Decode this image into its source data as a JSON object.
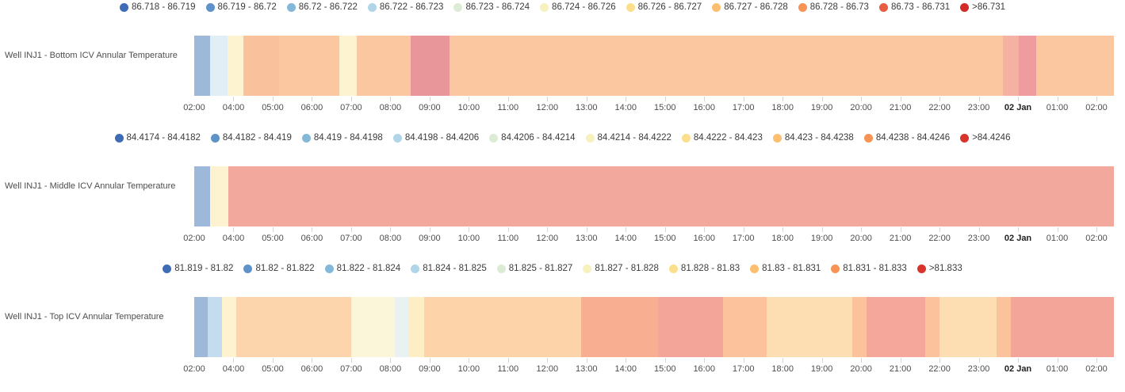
{
  "x_axis": {
    "labels": [
      "02:00",
      "04:00",
      "05:00",
      "06:00",
      "07:00",
      "08:00",
      "09:00",
      "10:00",
      "11:00",
      "12:00",
      "13:00",
      "14:00",
      "15:00",
      "16:00",
      "17:00",
      "18:00",
      "19:00",
      "20:00",
      "21:00",
      "22:00",
      "23:00",
      "02 Jan",
      "01:00",
      "02:00"
    ],
    "bold_label_index": 21,
    "tick_color": "#d6d6d6",
    "label_color": "#4d4d4d"
  },
  "chart_data": [
    {
      "type": "heatmap",
      "title": "Well INJ1 - Bottom ICV Annular Temperature",
      "legend_position": "top-center",
      "x_labels": [
        "02:00",
        "04:00",
        "05:00",
        "06:00",
        "07:00",
        "08:00",
        "09:00",
        "10:00",
        "11:00",
        "12:00",
        "13:00",
        "14:00",
        "15:00",
        "16:00",
        "17:00",
        "18:00",
        "19:00",
        "20:00",
        "21:00",
        "22:00",
        "23:00",
        "02 Jan",
        "01:00",
        "02:00"
      ],
      "color_bins": [
        {
          "label": "86.718 - 86.719",
          "color": "#3e6db5"
        },
        {
          "label": "86.719 - 86.72",
          "color": "#5e92c8"
        },
        {
          "label": "86.72 - 86.722",
          "color": "#84b8d9"
        },
        {
          "label": "86.722 - 86.723",
          "color": "#afd5e7"
        },
        {
          "label": "86.723 - 86.724",
          "color": "#dcebd3"
        },
        {
          "label": "86.724 - 86.726",
          "color": "#f7f1bf"
        },
        {
          "label": "86.726 - 86.727",
          "color": "#fbdf8d"
        },
        {
          "label": "86.727 - 86.728",
          "color": "#fbbf6f"
        },
        {
          "label": "86.728 - 86.73",
          "color": "#f79355"
        },
        {
          "label": "86.73 - 86.731",
          "color": "#e85c43"
        },
        {
          "label": ">86.731",
          "color": "#d22b28"
        }
      ],
      "segments": [
        {
          "start": 0.0,
          "end": 0.0172,
          "color": "#9db8d9",
          "bin": "86.719 - 86.72"
        },
        {
          "start": 0.0172,
          "end": 0.0362,
          "color": "#e2eef6",
          "bin": "86.722 - 86.723"
        },
        {
          "start": 0.0362,
          "end": 0.0534,
          "color": "#fdf3d1",
          "bin": "86.724 - 86.726"
        },
        {
          "start": 0.0534,
          "end": 0.0922,
          "color": "#f9c29c",
          "bin": "86.727 - 86.728"
        },
        {
          "start": 0.0922,
          "end": 0.1578,
          "color": "#fac7a1",
          "bin": "86.727 - 86.728"
        },
        {
          "start": 0.1578,
          "end": 0.1767,
          "color": "#fdf3d1",
          "bin": "86.724 - 86.726"
        },
        {
          "start": 0.1767,
          "end": 0.2353,
          "color": "#fac7a1",
          "bin": "86.727 - 86.728"
        },
        {
          "start": 0.2353,
          "end": 0.2776,
          "color": "#e9969b",
          "bin": "86.73 - 86.731"
        },
        {
          "start": 0.2776,
          "end": 0.8793,
          "color": "#fac7a1",
          "bin": "86.727 - 86.728"
        },
        {
          "start": 0.8793,
          "end": 0.8966,
          "color": "#f5b2a3",
          "bin": "86.728 - 86.73"
        },
        {
          "start": 0.8966,
          "end": 0.9155,
          "color": "#ee9c9e",
          "bin": "86.73 - 86.731"
        },
        {
          "start": 0.9155,
          "end": 1.0,
          "color": "#fac7a1",
          "bin": "86.727 - 86.728"
        }
      ]
    },
    {
      "type": "heatmap",
      "title": "Well INJ1 - Middle ICV Annular Temperature",
      "legend_position": "top-center",
      "x_labels": [
        "02:00",
        "04:00",
        "05:00",
        "06:00",
        "07:00",
        "08:00",
        "09:00",
        "10:00",
        "11:00",
        "12:00",
        "13:00",
        "14:00",
        "15:00",
        "16:00",
        "17:00",
        "18:00",
        "19:00",
        "20:00",
        "21:00",
        "22:00",
        "23:00",
        "02 Jan",
        "01:00",
        "02:00"
      ],
      "color_bins": [
        {
          "label": "84.4174 - 84.4182",
          "color": "#3e6db5"
        },
        {
          "label": "84.4182 - 84.419",
          "color": "#5e92c8"
        },
        {
          "label": "84.419 - 84.4198",
          "color": "#84b8d9"
        },
        {
          "label": "84.4198 - 84.4206",
          "color": "#afd5e7"
        },
        {
          "label": "84.4206 - 84.4214",
          "color": "#dcebd3"
        },
        {
          "label": "84.4214 - 84.4222",
          "color": "#f7f1bf"
        },
        {
          "label": "84.4222 - 84.423",
          "color": "#fbdf8d"
        },
        {
          "label": "84.423 - 84.4238",
          "color": "#fbbf6f"
        },
        {
          "label": "84.4238 - 84.4246",
          "color": "#f79355"
        },
        {
          "label": ">84.4246",
          "color": "#d7342c"
        }
      ],
      "segments": [
        {
          "start": 0.0,
          "end": 0.0172,
          "color": "#9db8d9",
          "bin": "84.4182 - 84.419"
        },
        {
          "start": 0.0172,
          "end": 0.037,
          "color": "#fdf3d1",
          "bin": "84.4214 - 84.4222"
        },
        {
          "start": 0.037,
          "end": 1.0,
          "color": "#f2a89d",
          "bin": ">84.4246"
        }
      ]
    },
    {
      "type": "heatmap",
      "title": "Well INJ1 - Top ICV Annular Temperature",
      "legend_position": "top-center",
      "x_labels": [
        "02:00",
        "04:00",
        "05:00",
        "06:00",
        "07:00",
        "08:00",
        "09:00",
        "10:00",
        "11:00",
        "12:00",
        "13:00",
        "14:00",
        "15:00",
        "16:00",
        "17:00",
        "18:00",
        "19:00",
        "20:00",
        "21:00",
        "22:00",
        "23:00",
        "02 Jan",
        "01:00",
        "02:00"
      ],
      "color_bins": [
        {
          "label": "81.819 - 81.82",
          "color": "#3e6db5"
        },
        {
          "label": "81.82 - 81.822",
          "color": "#5e92c8"
        },
        {
          "label": "81.822 - 81.824",
          "color": "#84b8d9"
        },
        {
          "label": "81.824 - 81.825",
          "color": "#afd5e7"
        },
        {
          "label": "81.825 - 81.827",
          "color": "#dcebd3"
        },
        {
          "label": "81.827 - 81.828",
          "color": "#f7f1bf"
        },
        {
          "label": "81.828 - 81.83",
          "color": "#fbdf8d"
        },
        {
          "label": "81.83 - 81.831",
          "color": "#fbbf6f"
        },
        {
          "label": "81.831 - 81.833",
          "color": "#f79355"
        },
        {
          "label": ">81.833",
          "color": "#d7342c"
        }
      ],
      "segments": [
        {
          "start": 0.0,
          "end": 0.0147,
          "color": "#9db8d9",
          "bin": "81.82 - 81.822"
        },
        {
          "start": 0.0147,
          "end": 0.0302,
          "color": "#c5dcee",
          "bin": "81.822 - 81.824"
        },
        {
          "start": 0.0302,
          "end": 0.0457,
          "color": "#fdf3d1",
          "bin": "81.827 - 81.828"
        },
        {
          "start": 0.0457,
          "end": 0.1707,
          "color": "#fdd5ac",
          "bin": "81.83 - 81.831"
        },
        {
          "start": 0.1707,
          "end": 0.2181,
          "color": "#fbf5da",
          "bin": "81.827 - 81.828"
        },
        {
          "start": 0.2181,
          "end": 0.2328,
          "color": "#eaf2f1",
          "bin": "81.824 - 81.825"
        },
        {
          "start": 0.2328,
          "end": 0.25,
          "color": "#fdeec6",
          "bin": "81.827 - 81.828"
        },
        {
          "start": 0.25,
          "end": 0.4207,
          "color": "#fdd3a9",
          "bin": "81.83 - 81.831"
        },
        {
          "start": 0.4207,
          "end": 0.5043,
          "color": "#f8ae90",
          "bin": "81.831 - 81.833"
        },
        {
          "start": 0.5043,
          "end": 0.575,
          "color": "#f3a59a",
          "bin": ">81.833"
        },
        {
          "start": 0.575,
          "end": 0.6224,
          "color": "#fbc29c",
          "bin": "81.83 - 81.831"
        },
        {
          "start": 0.6224,
          "end": 0.7155,
          "color": "#fdddb2",
          "bin": "81.828 - 81.83"
        },
        {
          "start": 0.7155,
          "end": 0.731,
          "color": "#fbc29c",
          "bin": "81.83 - 81.831"
        },
        {
          "start": 0.731,
          "end": 0.7948,
          "color": "#f4a79a",
          "bin": ">81.833"
        },
        {
          "start": 0.7948,
          "end": 0.8103,
          "color": "#fbc29c",
          "bin": "81.83 - 81.831"
        },
        {
          "start": 0.8103,
          "end": 0.8724,
          "color": "#fdddb2",
          "bin": "81.828 - 81.83"
        },
        {
          "start": 0.8724,
          "end": 0.8879,
          "color": "#fbc29c",
          "bin": "81.83 - 81.831"
        },
        {
          "start": 0.8879,
          "end": 1.0,
          "color": "#f3a59a",
          "bin": ">81.833"
        }
      ]
    }
  ]
}
